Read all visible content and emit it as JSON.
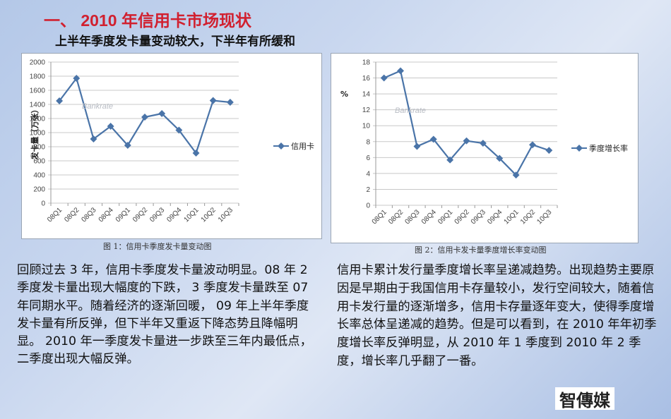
{
  "slide": {
    "title": "一、 2010 年信用卡市场现状",
    "subtitle": "上半年季度发卡量变动较大，下半年有所缓和"
  },
  "figures": [
    {
      "caption": "图 1：信用卡季度发卡量变动图"
    },
    {
      "caption": "图 2：信用卡发卡量季度增长率变动图"
    }
  ],
  "paragraphs": {
    "left": "回顾过去 3 年，信用卡季度发卡量波动明显。08 年 2 季度发卡量出现大幅度的下跌， 3 季度发卡量跌至 07 年同期水平。随着经济的逐渐回暖， 09 年上半年季度发卡量有所反弹，但下半年又重返下降态势且降幅明显。 2010 年一季度发卡量进一步跌至三年内最低点，二季度出现大幅反弹。",
    "right": "信用卡累计发行量季度增长率呈递减趋势。出现趋势主要原因是早期由于我国信用卡存量较小，发行空间较大，随着信用卡发行量的逐渐增多，信用卡存量逐年变大，使得季度增长率总体呈递减的趋势。但是可以看到，在 2010 年年初季度增长率反弹明显，从 2010 年 1 季度到 2010 年 2 季度，增长率几乎翻了一番。"
  },
  "logo": {
    "text": "智傳媒"
  },
  "watermark": "Bankrate",
  "colors": {
    "title": "#d1202f",
    "series": "#4a74a8",
    "grid": "#c8c8c8"
  },
  "chart_data": [
    {
      "type": "line",
      "title": "",
      "xlabel": "",
      "ylabel": "发卡量（万张）",
      "categories": [
        "08Q1",
        "08Q2",
        "08Q3",
        "08Q4",
        "09Q1",
        "09Q2",
        "09Q3",
        "09Q4",
        "10Q1",
        "10Q2",
        "10Q3"
      ],
      "series": [
        {
          "name": "信用卡",
          "values": [
            1450,
            1770,
            910,
            1090,
            820,
            1220,
            1270,
            1035,
            710,
            1455,
            1430
          ]
        }
      ],
      "ylim": [
        0,
        2000
      ],
      "yticks": [
        0,
        200,
        400,
        600,
        800,
        1000,
        1200,
        1400,
        1600,
        1800,
        2000
      ],
      "grid": true,
      "legend_position": "right"
    },
    {
      "type": "line",
      "title": "",
      "xlabel": "",
      "ylabel": "%",
      "categories": [
        "08Q1",
        "08Q2",
        "08Q3",
        "08Q4",
        "09Q1",
        "09Q2",
        "09Q3",
        "09Q4",
        "10Q1",
        "10Q2",
        "10Q3"
      ],
      "series": [
        {
          "name": "季度增长率",
          "values": [
            16.0,
            16.9,
            7.4,
            8.3,
            5.7,
            8.1,
            7.8,
            5.9,
            3.8,
            7.6,
            6.9
          ]
        }
      ],
      "ylim": [
        0,
        18
      ],
      "yticks": [
        0,
        2,
        4,
        6,
        8,
        10,
        12,
        14,
        16,
        18
      ],
      "grid": true,
      "legend_position": "right"
    }
  ]
}
